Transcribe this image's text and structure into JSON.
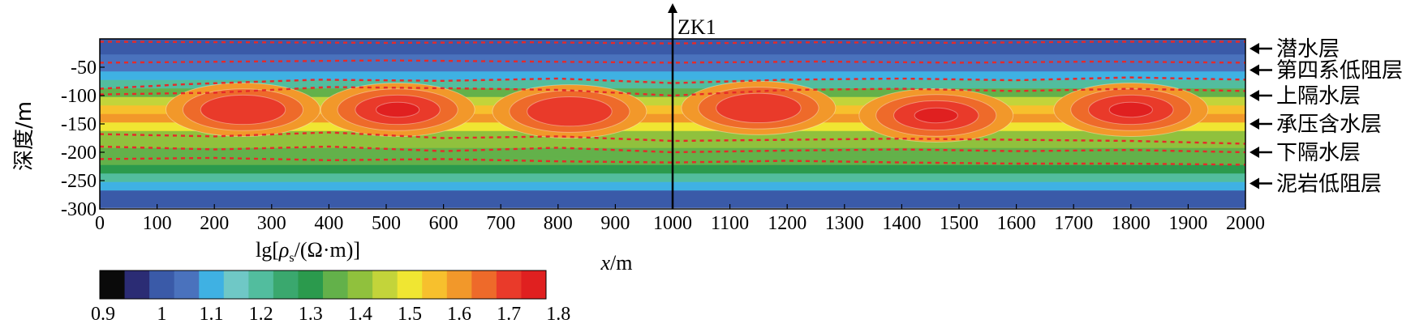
{
  "chart_data": {
    "type": "heatmap",
    "title": "",
    "xlabel_italic": "x",
    "xlabel_unit": "/m",
    "ylabel": "深度/m",
    "xlim": [
      0,
      2000
    ],
    "ylim": [
      -300,
      0
    ],
    "x_ticks": [
      "0",
      "100",
      "200",
      "300",
      "400",
      "500",
      "600",
      "700",
      "800",
      "900",
      "1000",
      "1100",
      "1200",
      "1300",
      "1400",
      "1500",
      "1600",
      "1700",
      "1800",
      "1900",
      "2000"
    ],
    "y_ticks": [
      "-50",
      "-100",
      "-150",
      "-200",
      "-250",
      "-300"
    ],
    "y_tick_values": [
      -50,
      -100,
      -150,
      -200,
      -250,
      -300
    ],
    "borehole": {
      "label": "ZK1",
      "x": 1000
    },
    "colorbar": {
      "label_prefix": "lg[",
      "label_rho": "ρ",
      "label_sub": "s",
      "label_suffix": "/(Ω·m)]",
      "tick_labels": [
        "0.9",
        "1",
        "1.1",
        "1.2",
        "1.3",
        "1.4",
        "1.5",
        "1.6",
        "1.7",
        "1.8"
      ],
      "colors": [
        "#0a0a0a",
        "#2b2c74",
        "#3a5aa8",
        "#4a72bd",
        "#3fb1e3",
        "#6fc8c6",
        "#52bd9e",
        "#3aa86e",
        "#2b9a4d",
        "#63b14a",
        "#90c13d",
        "#c3d43a",
        "#f0e632",
        "#f7c02d",
        "#f2982a",
        "#ee6a2a",
        "#e93a2a",
        "#e02020"
      ]
    },
    "layers": [
      {
        "name": "潜水层",
        "depth": -10
      },
      {
        "name": "第四系低阻层",
        "depth": -55
      },
      {
        "name": "上隔水层",
        "depth": -100
      },
      {
        "name": "承压含水层",
        "depth": -150
      },
      {
        "name": "下隔水层",
        "depth": -200
      },
      {
        "name": "泥岩低阻层",
        "depth": -255
      }
    ],
    "profile_depths": [
      -5,
      -20,
      -35,
      -50,
      -65,
      -80,
      -95,
      -110,
      -125,
      -140,
      -155,
      -170,
      -185,
      -200,
      -215,
      -230,
      -245,
      -260,
      -275,
      -290
    ],
    "profile_values": [
      1.02,
      1.02,
      1.03,
      1.03,
      1.08,
      1.22,
      1.35,
      1.45,
      1.54,
      1.58,
      1.5,
      1.42,
      1.38,
      1.36,
      1.34,
      1.3,
      1.22,
      1.12,
      1.02,
      0.98
    ],
    "peaks": [
      {
        "x": 250,
        "z": -125,
        "value": 1.75
      },
      {
        "x": 520,
        "z": -125,
        "value": 1.76
      },
      {
        "x": 820,
        "z": -128,
        "value": 1.74
      },
      {
        "x": 1150,
        "z": -122,
        "value": 1.75
      },
      {
        "x": 1460,
        "z": -135,
        "value": 1.8
      },
      {
        "x": 1800,
        "z": -125,
        "value": 1.77
      }
    ],
    "boundaries": [
      [
        [
          0,
          -5
        ],
        [
          250,
          -6
        ],
        [
          500,
          -7
        ],
        [
          750,
          -6
        ],
        [
          1000,
          -8
        ],
        [
          1250,
          -6
        ],
        [
          1500,
          -7
        ],
        [
          1750,
          -5
        ],
        [
          2000,
          -5
        ]
      ],
      [
        [
          0,
          -42
        ],
        [
          250,
          -40
        ],
        [
          500,
          -38
        ],
        [
          750,
          -40
        ],
        [
          1000,
          -42
        ],
        [
          1250,
          -40
        ],
        [
          1500,
          -42
        ],
        [
          1750,
          -40
        ],
        [
          2000,
          -42
        ]
      ],
      [
        [
          0,
          -88
        ],
        [
          150,
          -80
        ],
        [
          380,
          -72
        ],
        [
          600,
          -74
        ],
        [
          800,
          -70
        ],
        [
          1000,
          -78
        ],
        [
          1200,
          -72
        ],
        [
          1400,
          -70
        ],
        [
          1600,
          -73
        ],
        [
          1800,
          -68
        ],
        [
          2000,
          -72
        ]
      ],
      [
        [
          0,
          -98
        ],
        [
          200,
          -95
        ],
        [
          400,
          -85
        ],
        [
          600,
          -87
        ],
        [
          800,
          -90
        ],
        [
          1000,
          -100
        ],
        [
          1200,
          -90
        ],
        [
          1400,
          -88
        ],
        [
          1600,
          -92
        ],
        [
          1800,
          -88
        ],
        [
          2000,
          -92
        ]
      ],
      [
        [
          0,
          -168
        ],
        [
          200,
          -172
        ],
        [
          400,
          -165
        ],
        [
          600,
          -175
        ],
        [
          800,
          -172
        ],
        [
          1000,
          -180
        ],
        [
          1200,
          -178
        ],
        [
          1400,
          -176
        ],
        [
          1600,
          -178
        ],
        [
          1800,
          -180
        ],
        [
          2000,
          -185
        ]
      ],
      [
        [
          0,
          -190
        ],
        [
          200,
          -195
        ],
        [
          400,
          -190
        ],
        [
          600,
          -198
        ],
        [
          800,
          -192
        ],
        [
          1000,
          -200
        ],
        [
          1200,
          -197
        ],
        [
          1400,
          -195
        ],
        [
          1600,
          -198
        ],
        [
          1800,
          -196
        ],
        [
          2000,
          -200
        ]
      ],
      [
        [
          0,
          -212
        ],
        [
          200,
          -210
        ],
        [
          400,
          -214
        ],
        [
          600,
          -212
        ],
        [
          800,
          -216
        ],
        [
          1000,
          -218
        ],
        [
          1200,
          -215
        ],
        [
          1400,
          -218
        ],
        [
          1600,
          -220
        ],
        [
          1800,
          -220
        ],
        [
          2000,
          -222
        ]
      ]
    ]
  }
}
